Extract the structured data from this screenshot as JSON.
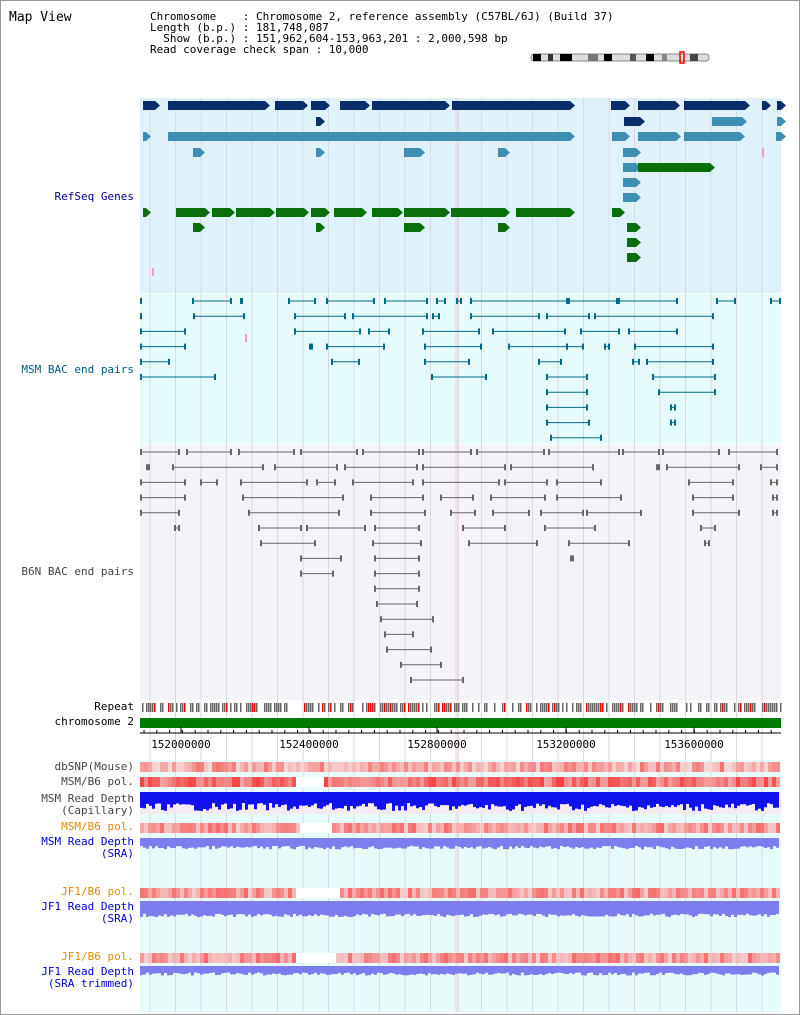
{
  "title": "Map View",
  "info": {
    "chromosome": "Chromosome    : Chromosome 2, reference assembly (C57BL/6J) (Build 37)",
    "length": "Length (b.p.) : 181,748,087",
    "show": "  Show (b.p.) : 151,962,604-153,963,201 : 2,000,598 bp",
    "coverage": "Read coverage check span : 10,000"
  },
  "tracks": {
    "refseq": "RefSeq Genes",
    "msm_bac": "MSM BAC end pairs",
    "b6n_bac": "B6N BAC end pairs",
    "repeat": "Repeat",
    "chromosome": "chromosome 2",
    "dbsnp": "dbSNP(Mouse)",
    "msm_b6_pol": "MSM/B6 pol.",
    "msm_read_depth_cap": "MSM Read Depth\n(Capillary)",
    "msm_b6_pol2": "MSM/B6 pol.",
    "msm_read_depth_sra": "MSM Read Depth\n(SRA)",
    "jf1_b6_pol": "JF1/B6 pol.",
    "jf1_read_depth_sra": "JF1 Read Depth\n(SRA)",
    "jf1_b6_pol2": "JF1/B6 pol.",
    "jf1_read_depth_trim": "JF1 Read Depth\n(SRA trimmed)"
  },
  "axis": {
    "ticks": [
      "152000000",
      "152400000",
      "152800000",
      "153200000",
      "153600000"
    ]
  },
  "colors": {
    "refseq_bg": "#dff2fb",
    "bac_bg": "#e6fbfb",
    "gene_dark": "#0b2d6b",
    "gene_mid": "#3f8fb5",
    "gene_green": "#0a6e0a",
    "chromosome_bar": "#007a00",
    "depth_blue": "#1111ee",
    "depth_light": "#7d7dee"
  }
}
